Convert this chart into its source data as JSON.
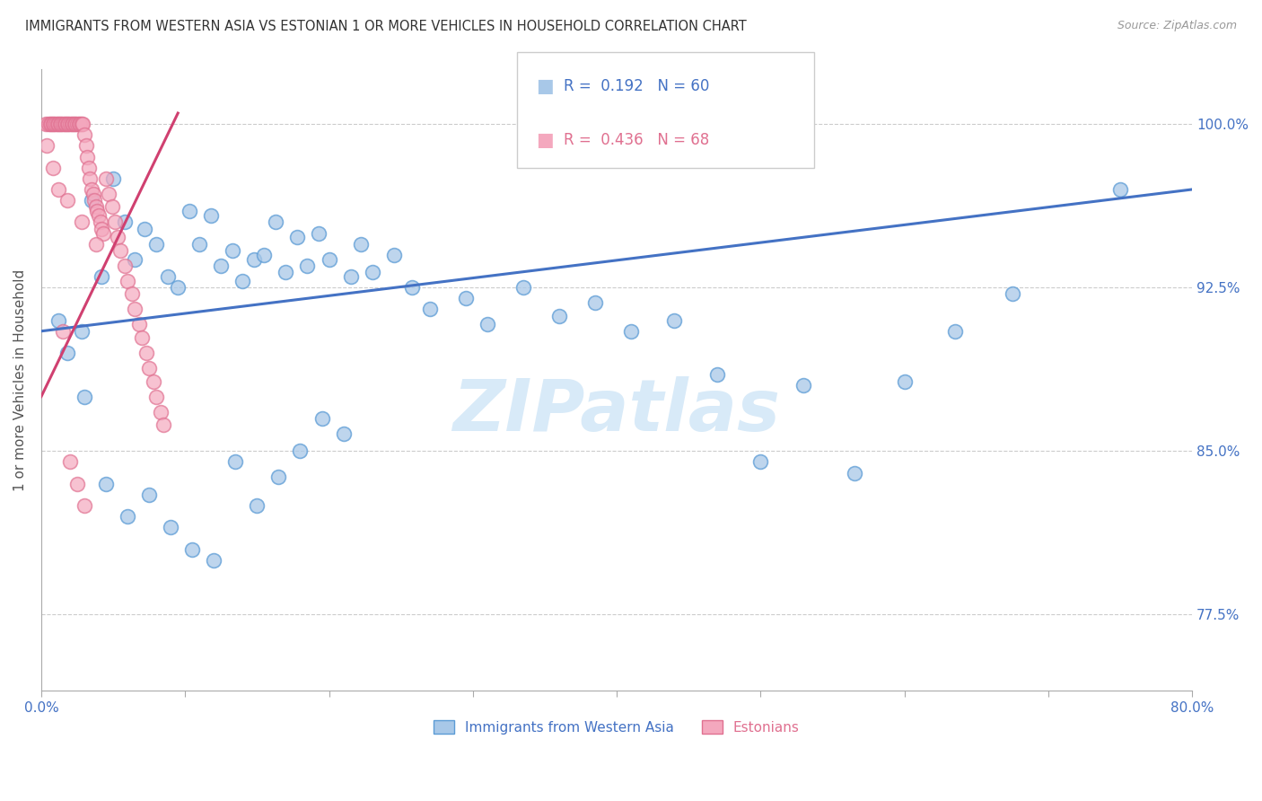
{
  "title": "IMMIGRANTS FROM WESTERN ASIA VS ESTONIAN 1 OR MORE VEHICLES IN HOUSEHOLD CORRELATION CHART",
  "source": "Source: ZipAtlas.com",
  "ylabel": "1 or more Vehicles in Household",
  "x_tick_labels_show": [
    "0.0%",
    "80.0%"
  ],
  "x_tick_values": [
    0.0,
    10.0,
    20.0,
    30.0,
    40.0,
    50.0,
    60.0,
    70.0,
    80.0
  ],
  "y_tick_labels": [
    "77.5%",
    "85.0%",
    "92.5%",
    "100.0%"
  ],
  "y_tick_values": [
    77.5,
    85.0,
    92.5,
    100.0
  ],
  "xlim": [
    0.0,
    80.0
  ],
  "ylim": [
    74.0,
    102.5
  ],
  "legend_label1": "Immigrants from Western Asia",
  "legend_label2": "Estonians",
  "blue_color": "#a8c8e8",
  "pink_color": "#f4a8be",
  "blue_edge_color": "#5b9bd5",
  "pink_edge_color": "#e07090",
  "blue_line_color": "#4472c4",
  "pink_line_color": "#d04070",
  "tick_color": "#4472c4",
  "grid_color": "#cccccc",
  "watermark_color": "#d8eaf8",
  "blue_scatter_x": [
    1.2,
    2.8,
    3.5,
    4.2,
    5.0,
    5.8,
    6.5,
    7.2,
    8.0,
    8.8,
    9.5,
    10.3,
    11.0,
    11.8,
    12.5,
    13.3,
    14.0,
    14.8,
    15.5,
    16.3,
    17.0,
    17.8,
    18.5,
    19.3,
    20.0,
    21.5,
    22.2,
    23.0,
    24.5,
    25.8,
    27.0,
    29.5,
    31.0,
    33.5,
    36.0,
    38.5,
    41.0,
    44.0,
    47.0,
    50.0,
    53.0,
    56.5,
    60.0,
    63.5,
    67.5,
    1.8,
    3.0,
    4.5,
    6.0,
    7.5,
    9.0,
    10.5,
    12.0,
    13.5,
    15.0,
    16.5,
    18.0,
    19.5,
    21.0,
    75.0
  ],
  "blue_scatter_y": [
    91.0,
    90.5,
    96.5,
    93.0,
    97.5,
    95.5,
    93.8,
    95.2,
    94.5,
    93.0,
    92.5,
    96.0,
    94.5,
    95.8,
    93.5,
    94.2,
    92.8,
    93.8,
    94.0,
    95.5,
    93.2,
    94.8,
    93.5,
    95.0,
    93.8,
    93.0,
    94.5,
    93.2,
    94.0,
    92.5,
    91.5,
    92.0,
    90.8,
    92.5,
    91.2,
    91.8,
    90.5,
    91.0,
    88.5,
    84.5,
    88.0,
    84.0,
    88.2,
    90.5,
    92.2,
    89.5,
    87.5,
    83.5,
    82.0,
    83.0,
    81.5,
    80.5,
    80.0,
    84.5,
    82.5,
    83.8,
    85.0,
    86.5,
    85.8,
    97.0
  ],
  "pink_scatter_x": [
    0.3,
    0.5,
    0.6,
    0.7,
    0.8,
    0.9,
    1.0,
    1.1,
    1.2,
    1.3,
    1.4,
    1.5,
    1.6,
    1.7,
    1.8,
    1.9,
    2.0,
    2.1,
    2.2,
    2.3,
    2.4,
    2.5,
    2.6,
    2.7,
    2.8,
    2.9,
    3.0,
    3.1,
    3.2,
    3.3,
    3.4,
    3.5,
    3.6,
    3.7,
    3.8,
    3.9,
    4.0,
    4.1,
    4.2,
    4.3,
    4.5,
    4.7,
    4.9,
    5.1,
    5.3,
    5.5,
    5.8,
    6.0,
    6.3,
    6.5,
    6.8,
    7.0,
    7.3,
    7.5,
    7.8,
    8.0,
    8.3,
    8.5,
    1.5,
    2.0,
    2.5,
    3.0,
    0.4,
    0.8,
    1.2,
    1.8,
    2.8,
    3.8
  ],
  "pink_scatter_y": [
    100.0,
    100.0,
    100.0,
    100.0,
    100.0,
    100.0,
    100.0,
    100.0,
    100.0,
    100.0,
    100.0,
    100.0,
    100.0,
    100.0,
    100.0,
    100.0,
    100.0,
    100.0,
    100.0,
    100.0,
    100.0,
    100.0,
    100.0,
    100.0,
    100.0,
    100.0,
    99.5,
    99.0,
    98.5,
    98.0,
    97.5,
    97.0,
    96.8,
    96.5,
    96.2,
    96.0,
    95.8,
    95.5,
    95.2,
    95.0,
    97.5,
    96.8,
    96.2,
    95.5,
    94.8,
    94.2,
    93.5,
    92.8,
    92.2,
    91.5,
    90.8,
    90.2,
    89.5,
    88.8,
    88.2,
    87.5,
    86.8,
    86.2,
    90.5,
    84.5,
    83.5,
    82.5,
    99.0,
    98.0,
    97.0,
    96.5,
    95.5,
    94.5
  ],
  "blue_trend_x0": 0.0,
  "blue_trend_x1": 80.0,
  "blue_trend_y0": 90.5,
  "blue_trend_y1": 97.0,
  "pink_trend_x0": 0.0,
  "pink_trend_x1": 9.5,
  "pink_trend_y0": 87.5,
  "pink_trend_y1": 100.5
}
